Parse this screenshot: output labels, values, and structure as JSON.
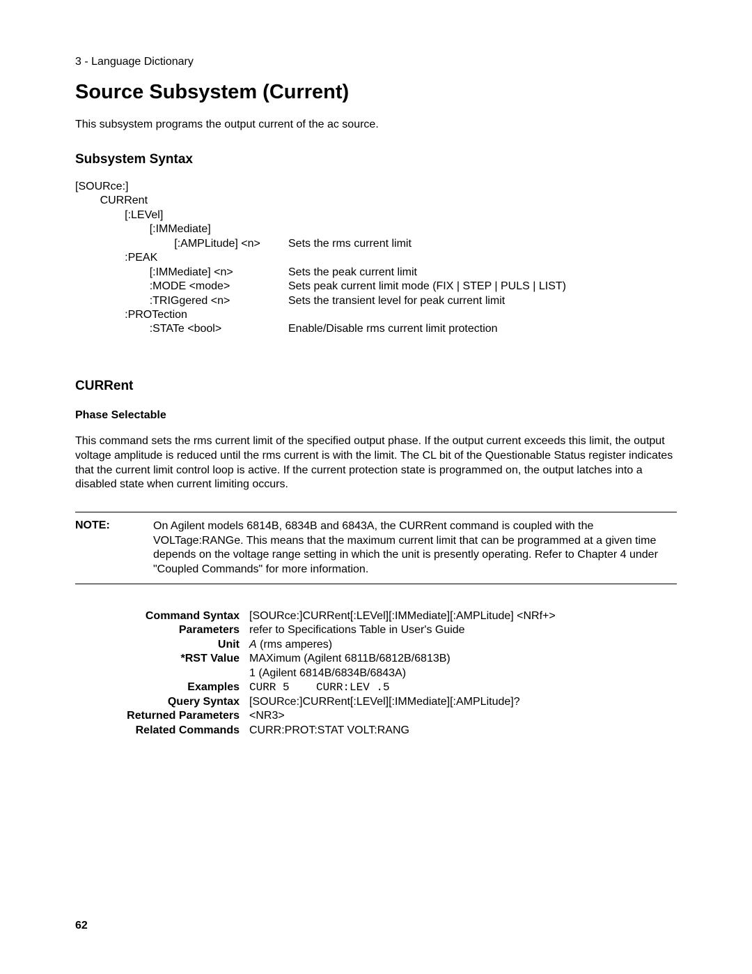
{
  "header": "3 - Language Dictionary",
  "title": "Source Subsystem (Current)",
  "intro": "This subsystem programs the output current of the ac source.",
  "syntax_heading": "Subsystem Syntax",
  "syntax_lines": [
    {
      "left": "[SOURce:]",
      "right": ""
    },
    {
      "left": "        CURRent",
      "right": ""
    },
    {
      "left": "                [:LEVel]",
      "right": ""
    },
    {
      "left": "                        [:IMMediate]",
      "right": ""
    },
    {
      "left": "                                [:AMPLitude] <n>",
      "right": "Sets the rms current limit"
    },
    {
      "left": "                :PEAK",
      "right": ""
    },
    {
      "left": "                        [:IMMediate] <n>",
      "right": "Sets the peak current limit"
    },
    {
      "left": "                        :MODE <mode>",
      "right": "Sets peak current limit mode (FIX | STEP | PULS | LIST)"
    },
    {
      "left": "                        :TRIGgered <n>",
      "right": "Sets the transient level for peak current limit"
    },
    {
      "left": "                :PROTection",
      "right": ""
    },
    {
      "left": "                        :STATe <bool>",
      "right": "Enable/Disable rms current limit protection"
    }
  ],
  "command_heading": "CURRent",
  "phase_label": "Phase Selectable",
  "command_para": "This command sets the rms current limit of the specified output phase. If the output current exceeds this limit, the output voltage amplitude is reduced until the rms current is with the limit. The CL bit of the Questionable Status register indicates that the current limit control loop is active. If the current protection state is programmed on, the output latches into a disabled state when current limiting occurs.",
  "note_label": "NOTE:",
  "note_text": "On Agilent models 6814B, 6834B and 6843A, the CURRent command is coupled with the VOLTage:RANGe. This means that the maximum current limit that can be programmed at a given time depends on the voltage range setting in which the unit is presently operating. Refer to Chapter 4 under \"Coupled Commands\" for more information.",
  "cmd": {
    "syntax_label": "Command Syntax",
    "syntax_val": "[SOURce:]CURRent[:LEVel][:IMMediate][:AMPLitude] <NRf+>",
    "params_label": "Parameters",
    "params_val": "refer to Specifications Table in User's Guide",
    "unit_label": "Unit",
    "unit_val_italic": "A",
    "unit_val_rest": "  (rms amperes)",
    "rst_label": "*RST Value",
    "rst_val1": "MAXimum (Agilent 6811B/6812B/6813B)",
    "rst_val2": "1 (Agilent 6814B/6834B/6843A)",
    "examples_label": "Examples",
    "examples_val": "CURR 5    CURR:LEV .5",
    "query_label": "Query Syntax",
    "query_val": "[SOURce:]CURRent[:LEVel][:IMMediate][:AMPLitude]?",
    "returned_label": "Returned Parameters",
    "returned_val": "<NR3>",
    "related_label": "Related Commands",
    "related_val": "CURR:PROT:STAT    VOLT:RANG"
  },
  "page_number": "62"
}
